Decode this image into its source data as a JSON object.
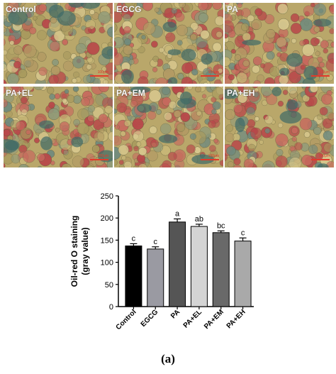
{
  "panels": [
    {
      "label": "Control",
      "scale": "100μm"
    },
    {
      "label": "EGCG",
      "scale": "100μm"
    },
    {
      "label": "PA",
      "scale": "100μm"
    },
    {
      "label": "PA+EL",
      "scale": "100μm"
    },
    {
      "label": "PA+EM",
      "scale": "100μm"
    },
    {
      "label": "PA+EH",
      "scale": "100μm"
    }
  ],
  "chart_data": {
    "type": "bar",
    "categories": [
      "Control",
      "EGCG",
      "PA",
      "PA+EL",
      "PA+EM",
      "PA+EH"
    ],
    "values": [
      137,
      130,
      191,
      181,
      167,
      148
    ],
    "errors": [
      5,
      5,
      7,
      5,
      4,
      7
    ],
    "significance": [
      "c",
      "c",
      "a",
      "ab",
      "bc",
      "c"
    ],
    "colors": [
      "#000000",
      "#9a9aa2",
      "#555555",
      "#d4d4d4",
      "#696969",
      "#a9a9a9"
    ],
    "ylabel_lines": [
      "Oil-red O staining",
      "(gray value)"
    ],
    "ylim": [
      0,
      250
    ],
    "yticks": [
      0,
      50,
      100,
      150,
      200,
      250
    ]
  },
  "caption": "(a)"
}
